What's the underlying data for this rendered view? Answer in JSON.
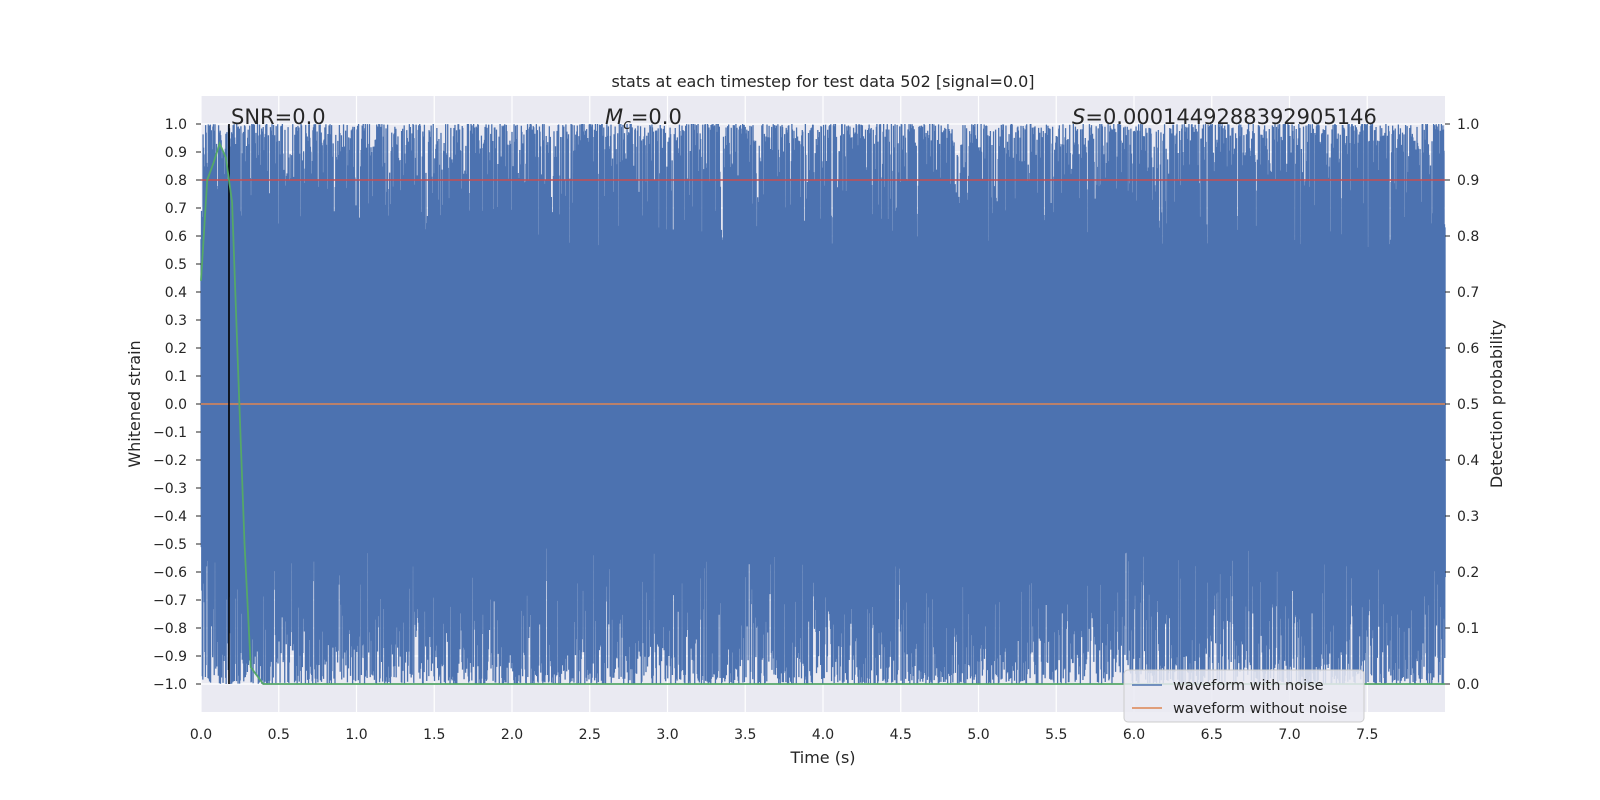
{
  "chart_data": {
    "type": "line",
    "title": "stats at each timestep for test data 502 [signal=0.0]",
    "xlabel": "Time (s)",
    "ylabel_left": "Whitened strain",
    "ylabel_right": "Detection probability",
    "xlim": [
      0.0,
      8.0
    ],
    "ylim_left": [
      -1.1,
      1.1
    ],
    "ylim_right": [
      -0.05,
      1.05
    ],
    "x_ticks": [
      "0.0",
      "0.5",
      "1.0",
      "1.5",
      "2.0",
      "2.5",
      "3.0",
      "3.5",
      "4.0",
      "4.5",
      "5.0",
      "5.5",
      "6.0",
      "6.5",
      "7.0",
      "7.5"
    ],
    "y_ticks_left": [
      "1.0",
      "0.9",
      "0.8",
      "0.7",
      "0.6",
      "0.5",
      "0.4",
      "0.3",
      "0.2",
      "0.1",
      "0.0",
      "−0.1",
      "−0.2",
      "−0.3",
      "−0.4",
      "−0.5",
      "−0.6",
      "−0.7",
      "−0.8",
      "−0.9",
      "−1.0"
    ],
    "y_ticks_right": [
      "1.0",
      "0.9",
      "0.8",
      "0.7",
      "0.6",
      "0.5",
      "0.4",
      "0.3",
      "0.2",
      "0.1",
      "0.0"
    ],
    "grid": true,
    "legend": {
      "placement": "bottom-right",
      "entries": [
        {
          "label": "waveform with noise",
          "color": "#4c72b0"
        },
        {
          "label": "waveform without noise",
          "color": "#dd8452"
        }
      ]
    },
    "annotations": {
      "snr_prefix": "SNR=",
      "snr_value": "0.0",
      "mc_symbol": "M",
      "mc_sub": "c",
      "mc_value": "=0.0",
      "s_symbol": "S",
      "s_value": "=0.0001449288392905146"
    },
    "series": [
      {
        "name": "waveform with noise",
        "axis": "left",
        "color": "#4c72b0",
        "note_generated": "noise fills the full range -1.0..1.0 densely across 0-8 s",
        "y_range": [
          -1.0,
          1.0
        ]
      },
      {
        "name": "waveform without noise",
        "axis": "left",
        "color": "#dd8452",
        "x": [
          0.0,
          8.0
        ],
        "y": [
          0.0,
          0.0
        ]
      },
      {
        "name": "detection probability",
        "axis": "right",
        "color": "#55a868",
        "x": [
          0.0,
          0.04,
          0.08,
          0.12,
          0.16,
          0.2,
          0.24,
          0.28,
          0.32,
          0.36,
          0.4,
          8.0
        ],
        "y": [
          0.72,
          0.9,
          0.93,
          0.965,
          0.94,
          0.86,
          0.55,
          0.25,
          0.03,
          0.015,
          0.0,
          0.0
        ]
      }
    ],
    "threshold": {
      "axis": "right",
      "value": 0.9,
      "color": "#c44e52"
    },
    "vline": {
      "x": 0.18,
      "color": "#000000"
    }
  }
}
